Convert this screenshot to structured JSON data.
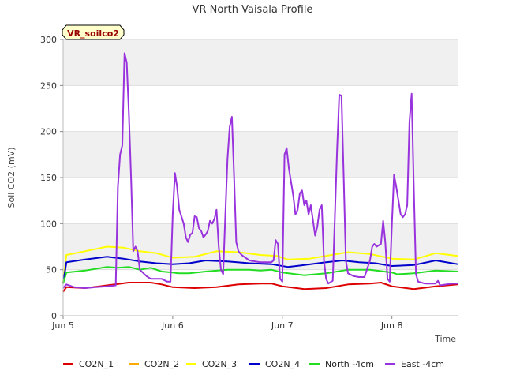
{
  "chart_data": {
    "type": "line",
    "title": "VR North Vaisala Profile",
    "xlabel": "Time",
    "ylabel": "Soil CO2 (mV)",
    "ylim": [
      0,
      300
    ],
    "xlim": [
      0,
      3.6
    ],
    "yticks": [
      0,
      50,
      100,
      150,
      200,
      250,
      300
    ],
    "xticks": [
      {
        "value": 0,
        "label": "Jun 5"
      },
      {
        "value": 1,
        "label": "Jun 6"
      },
      {
        "value": 2,
        "label": "Jun 7"
      },
      {
        "value": 3,
        "label": "Jun 8"
      }
    ],
    "annotation": "VR_soilco2",
    "legend_position": "bottom",
    "series": [
      {
        "name": "CO2N_1",
        "color": "#dd0000",
        "points": [
          [
            0,
            26
          ],
          [
            0.03,
            31
          ],
          [
            0.2,
            30
          ],
          [
            0.4,
            33
          ],
          [
            0.6,
            36
          ],
          [
            0.8,
            36
          ],
          [
            0.9,
            34
          ],
          [
            1.0,
            31
          ],
          [
            1.2,
            30
          ],
          [
            1.4,
            31
          ],
          [
            1.6,
            34
          ],
          [
            1.8,
            35
          ],
          [
            1.9,
            35
          ],
          [
            2.0,
            32
          ],
          [
            2.2,
            29
          ],
          [
            2.4,
            30
          ],
          [
            2.6,
            34
          ],
          [
            2.8,
            35
          ],
          [
            2.9,
            36
          ],
          [
            3.0,
            32
          ],
          [
            3.2,
            29
          ],
          [
            3.4,
            32
          ],
          [
            3.6,
            34
          ]
        ]
      },
      {
        "name": "CO2N_2",
        "color": "#ffaa00",
        "points": []
      },
      {
        "name": "CO2N_3",
        "color": "#ffff00",
        "points": [
          [
            0,
            36
          ],
          [
            0.03,
            66
          ],
          [
            0.2,
            70
          ],
          [
            0.4,
            75
          ],
          [
            0.55,
            74
          ],
          [
            0.7,
            70
          ],
          [
            0.85,
            68
          ],
          [
            1.0,
            63
          ],
          [
            1.2,
            64
          ],
          [
            1.4,
            70
          ],
          [
            1.6,
            69
          ],
          [
            1.8,
            66
          ],
          [
            1.95,
            65
          ],
          [
            2.05,
            61
          ],
          [
            2.25,
            62
          ],
          [
            2.45,
            66
          ],
          [
            2.6,
            69
          ],
          [
            2.8,
            67
          ],
          [
            3.0,
            62
          ],
          [
            3.2,
            61
          ],
          [
            3.4,
            68
          ],
          [
            3.6,
            65
          ]
        ]
      },
      {
        "name": "CO2N_4",
        "color": "#0000cc",
        "points": [
          [
            0,
            35
          ],
          [
            0.03,
            58
          ],
          [
            0.2,
            61
          ],
          [
            0.4,
            64
          ],
          [
            0.55,
            62
          ],
          [
            0.7,
            59
          ],
          [
            0.85,
            57
          ],
          [
            1.0,
            56
          ],
          [
            1.15,
            57
          ],
          [
            1.3,
            60
          ],
          [
            1.5,
            59
          ],
          [
            1.7,
            57
          ],
          [
            1.9,
            56
          ],
          [
            2.05,
            53
          ],
          [
            2.2,
            55
          ],
          [
            2.4,
            58
          ],
          [
            2.55,
            60
          ],
          [
            2.7,
            58
          ],
          [
            2.85,
            57
          ],
          [
            3.0,
            54
          ],
          [
            3.2,
            55
          ],
          [
            3.4,
            60
          ],
          [
            3.6,
            56
          ]
        ]
      },
      {
        "name": "North -4cm",
        "color": "#22dd22",
        "points": [
          [
            0,
            35
          ],
          [
            0.03,
            47
          ],
          [
            0.2,
            49
          ],
          [
            0.4,
            53
          ],
          [
            0.5,
            52
          ],
          [
            0.6,
            53
          ],
          [
            0.7,
            50
          ],
          [
            0.8,
            52
          ],
          [
            0.9,
            48
          ],
          [
            1.0,
            47
          ],
          [
            1.05,
            46
          ],
          [
            1.15,
            46
          ],
          [
            1.3,
            48
          ],
          [
            1.5,
            50
          ],
          [
            1.7,
            50
          ],
          [
            1.8,
            49
          ],
          [
            1.9,
            50
          ],
          [
            2.0,
            47
          ],
          [
            2.2,
            44
          ],
          [
            2.4,
            46
          ],
          [
            2.5,
            48
          ],
          [
            2.6,
            50
          ],
          [
            2.8,
            50
          ],
          [
            3.0,
            47
          ],
          [
            3.05,
            45
          ],
          [
            3.2,
            46
          ],
          [
            3.4,
            49
          ],
          [
            3.6,
            48
          ]
        ]
      },
      {
        "name": "East -4cm",
        "color": "#9933dd",
        "points": [
          [
            0,
            30
          ],
          [
            0.03,
            34
          ],
          [
            0.1,
            31
          ],
          [
            0.2,
            30
          ],
          [
            0.3,
            31
          ],
          [
            0.4,
            32
          ],
          [
            0.48,
            33
          ],
          [
            0.5,
            140
          ],
          [
            0.52,
            175
          ],
          [
            0.54,
            185
          ],
          [
            0.56,
            285
          ],
          [
            0.58,
            275
          ],
          [
            0.6,
            220
          ],
          [
            0.62,
            150
          ],
          [
            0.64,
            70
          ],
          [
            0.66,
            75
          ],
          [
            0.68,
            70
          ],
          [
            0.7,
            50
          ],
          [
            0.76,
            43
          ],
          [
            0.8,
            40
          ],
          [
            0.9,
            40
          ],
          [
            0.95,
            37
          ],
          [
            0.98,
            37
          ],
          [
            1.0,
            110
          ],
          [
            1.02,
            155
          ],
          [
            1.04,
            140
          ],
          [
            1.06,
            115
          ],
          [
            1.1,
            100
          ],
          [
            1.12,
            85
          ],
          [
            1.14,
            80
          ],
          [
            1.16,
            88
          ],
          [
            1.18,
            90
          ],
          [
            1.2,
            108
          ],
          [
            1.22,
            107
          ],
          [
            1.24,
            95
          ],
          [
            1.26,
            92
          ],
          [
            1.28,
            85
          ],
          [
            1.3,
            88
          ],
          [
            1.32,
            92
          ],
          [
            1.34,
            103
          ],
          [
            1.36,
            100
          ],
          [
            1.38,
            105
          ],
          [
            1.4,
            115
          ],
          [
            1.42,
            75
          ],
          [
            1.44,
            50
          ],
          [
            1.46,
            45
          ],
          [
            1.48,
            110
          ],
          [
            1.5,
            170
          ],
          [
            1.52,
            205
          ],
          [
            1.54,
            216
          ],
          [
            1.56,
            150
          ],
          [
            1.58,
            80
          ],
          [
            1.6,
            70
          ],
          [
            1.62,
            67
          ],
          [
            1.64,
            65
          ],
          [
            1.7,
            60
          ],
          [
            1.8,
            58
          ],
          [
            1.9,
            58
          ],
          [
            1.92,
            60
          ],
          [
            1.94,
            82
          ],
          [
            1.96,
            78
          ],
          [
            1.98,
            40
          ],
          [
            2.0,
            37
          ],
          [
            2.02,
            175
          ],
          [
            2.04,
            182
          ],
          [
            2.06,
            160
          ],
          [
            2.08,
            145
          ],
          [
            2.1,
            130
          ],
          [
            2.12,
            110
          ],
          [
            2.14,
            115
          ],
          [
            2.16,
            133
          ],
          [
            2.18,
            136
          ],
          [
            2.2,
            120
          ],
          [
            2.22,
            125
          ],
          [
            2.24,
            110
          ],
          [
            2.26,
            120
          ],
          [
            2.28,
            103
          ],
          [
            2.3,
            87
          ],
          [
            2.32,
            97
          ],
          [
            2.34,
            115
          ],
          [
            2.36,
            120
          ],
          [
            2.38,
            60
          ],
          [
            2.4,
            40
          ],
          [
            2.42,
            35
          ],
          [
            2.46,
            38
          ],
          [
            2.5,
            180
          ],
          [
            2.52,
            240
          ],
          [
            2.54,
            239
          ],
          [
            2.56,
            150
          ],
          [
            2.58,
            60
          ],
          [
            2.6,
            46
          ],
          [
            2.65,
            43
          ],
          [
            2.7,
            42
          ],
          [
            2.75,
            42
          ],
          [
            2.8,
            60
          ],
          [
            2.82,
            75
          ],
          [
            2.84,
            78
          ],
          [
            2.86,
            75
          ],
          [
            2.9,
            78
          ],
          [
            2.92,
            103
          ],
          [
            2.94,
            80
          ],
          [
            2.96,
            40
          ],
          [
            2.98,
            37
          ],
          [
            3.0,
            100
          ],
          [
            3.02,
            153
          ],
          [
            3.04,
            140
          ],
          [
            3.06,
            125
          ],
          [
            3.08,
            110
          ],
          [
            3.1,
            107
          ],
          [
            3.12,
            110
          ],
          [
            3.14,
            120
          ],
          [
            3.16,
            210
          ],
          [
            3.18,
            241
          ],
          [
            3.2,
            140
          ],
          [
            3.22,
            45
          ],
          [
            3.24,
            37
          ],
          [
            3.3,
            35
          ],
          [
            3.36,
            35
          ],
          [
            3.4,
            35
          ],
          [
            3.42,
            38
          ],
          [
            3.44,
            33
          ],
          [
            3.5,
            34
          ],
          [
            3.55,
            35
          ],
          [
            3.6,
            35
          ]
        ]
      }
    ]
  }
}
